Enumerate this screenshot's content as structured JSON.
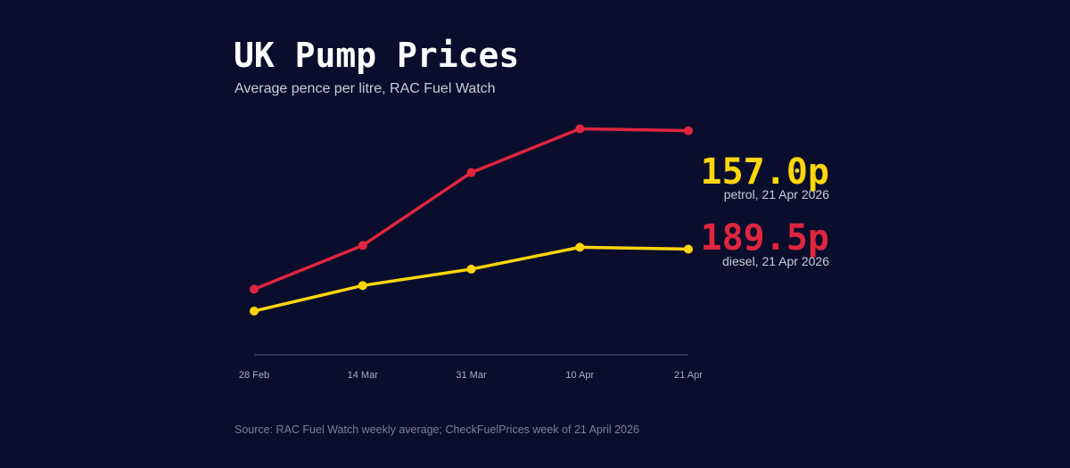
{
  "header": {
    "title": "UK Pump Prices",
    "subtitle": "Average pence per litre, RAC Fuel Watch"
  },
  "footer": {
    "source": "Source: RAC Fuel Watch weekly average; CheckFuelPrices week of 21 April 2026"
  },
  "colors": {
    "background": "#0a0e2c",
    "petrol": "#ffd60a",
    "diesel": "#e0263e",
    "baseline": "#3b4166"
  },
  "chart_data": {
    "type": "line",
    "title": "UK Pump Prices",
    "subtitle": "Average pence per litre, RAC Fuel Watch",
    "xlabel": "",
    "ylabel": "",
    "categories": [
      "28 Feb",
      "14 Mar",
      "31 Mar",
      "10 Apr",
      "21 Apr"
    ],
    "ylim": [
      128,
      196
    ],
    "grid": false,
    "legend": "none",
    "series": [
      {
        "key": "diesel",
        "values": [
          146.0,
          158.0,
          178.0,
          190.0,
          189.5
        ]
      },
      {
        "key": "petrol",
        "values": [
          140.0,
          147.0,
          151.5,
          157.5,
          157.0
        ]
      }
    ],
    "callouts": [
      {
        "series": "petrol",
        "value": "157.0p",
        "caption": "petrol, 21 Apr 2026"
      },
      {
        "series": "diesel",
        "value": "189.5p",
        "caption": "diesel, 21 Apr 2026"
      }
    ]
  }
}
